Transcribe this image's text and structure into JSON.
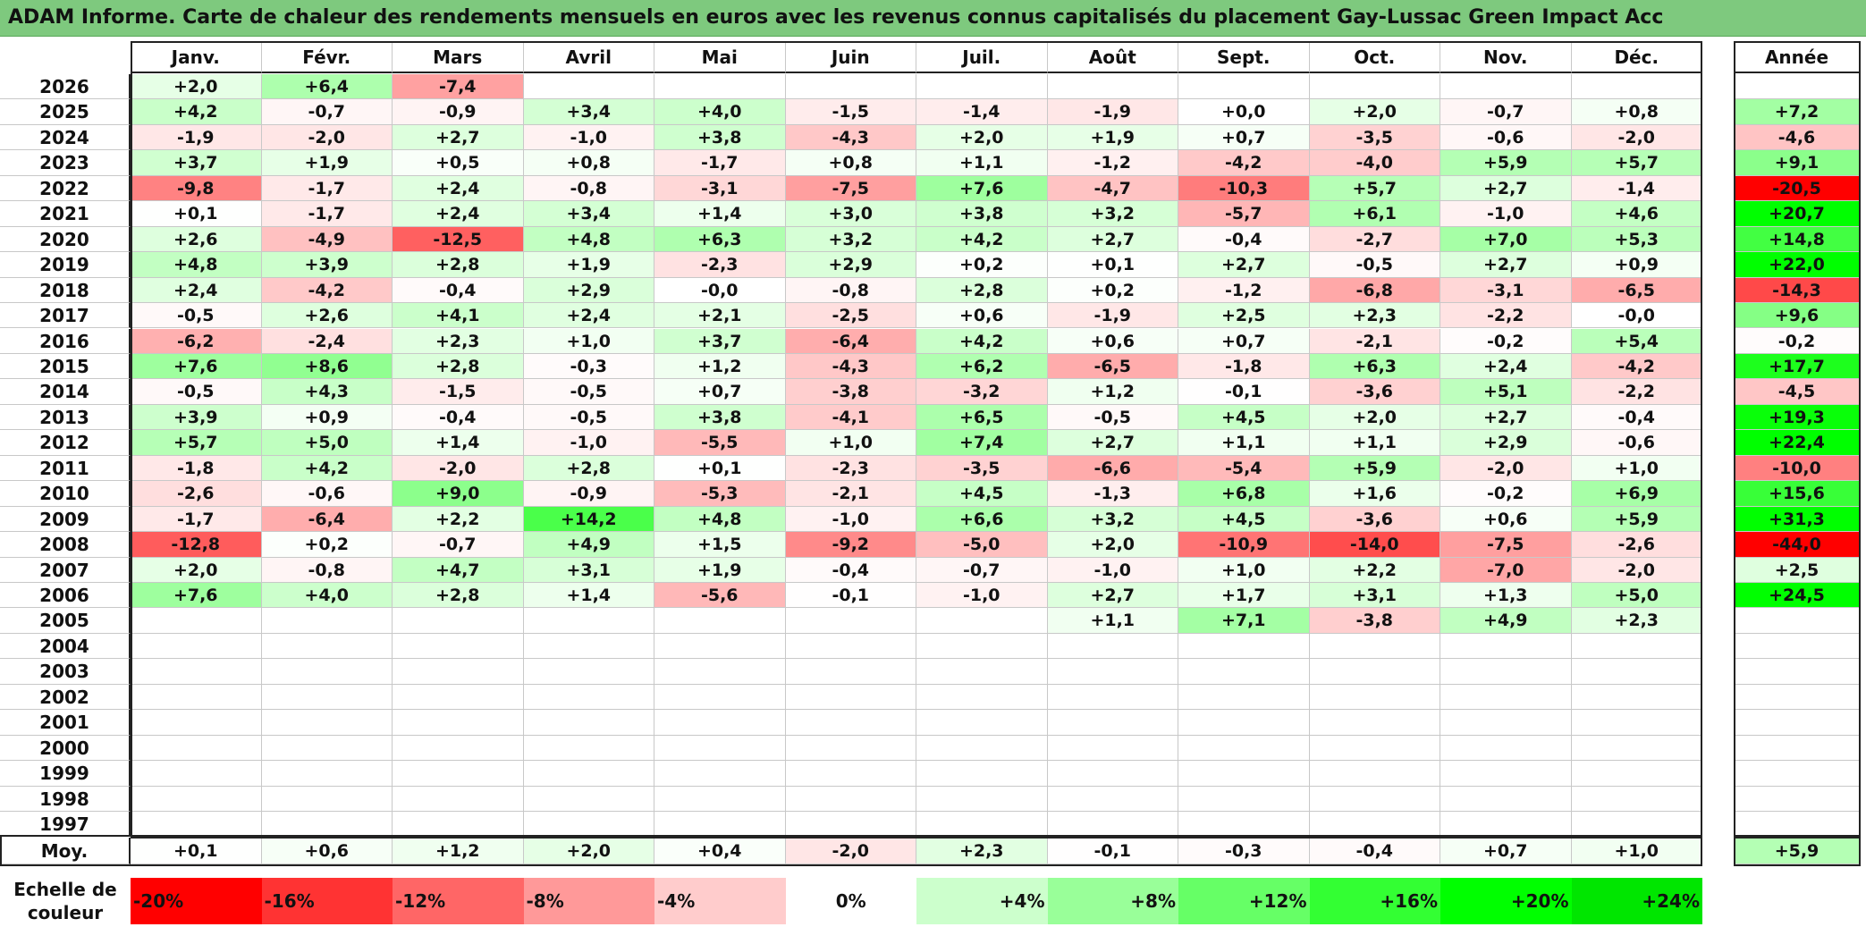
{
  "title": "ADAM Informe. Carte de chaleur des rendements mensuels en euros avec les revenus connus capitalisés du placement Gay-Lussac Green Impact Acc",
  "chart_data": {
    "type": "heatmap",
    "title": "ADAM Informe. Carte de chaleur des rendements mensuels en euros avec les revenus connus capitalisés du placement Gay-Lussac Green Impact Acc",
    "columns": [
      "Janv.",
      "Févr.",
      "Mars",
      "Avril",
      "Mai",
      "Juin",
      "Juil.",
      "Août",
      "Sept.",
      "Oct.",
      "Nov.",
      "Déc."
    ],
    "annual_header": "Année",
    "rows": [
      {
        "year": "2026",
        "values": [
          "+2,0",
          "+6,4",
          "-7,4",
          "",
          "",
          "",
          "",
          "",
          "",
          "",
          "",
          ""
        ],
        "annual": ""
      },
      {
        "year": "2025",
        "values": [
          "+4,2",
          "-0,7",
          "-0,9",
          "+3,4",
          "+4,0",
          "-1,5",
          "-1,4",
          "-1,9",
          "+0,0",
          "+2,0",
          "-0,7",
          "+0,8"
        ],
        "annual": "+7,2"
      },
      {
        "year": "2024",
        "values": [
          "-1,9",
          "-2,0",
          "+2,7",
          "-1,0",
          "+3,8",
          "-4,3",
          "+2,0",
          "+1,9",
          "+0,7",
          "-3,5",
          "-0,6",
          "-2,0"
        ],
        "annual": "-4,6"
      },
      {
        "year": "2023",
        "values": [
          "+3,7",
          "+1,9",
          "+0,5",
          "+0,8",
          "-1,7",
          "+0,8",
          "+1,1",
          "-1,2",
          "-4,2",
          "-4,0",
          "+5,9",
          "+5,7"
        ],
        "annual": "+9,1"
      },
      {
        "year": "2022",
        "values": [
          "-9,8",
          "-1,7",
          "+2,4",
          "-0,8",
          "-3,1",
          "-7,5",
          "+7,6",
          "-4,7",
          "-10,3",
          "+5,7",
          "+2,7",
          "-1,4"
        ],
        "annual": "-20,5"
      },
      {
        "year": "2021",
        "values": [
          "+0,1",
          "-1,7",
          "+2,4",
          "+3,4",
          "+1,4",
          "+3,0",
          "+3,8",
          "+3,2",
          "-5,7",
          "+6,1",
          "-1,0",
          "+4,6"
        ],
        "annual": "+20,7"
      },
      {
        "year": "2020",
        "values": [
          "+2,6",
          "-4,9",
          "-12,5",
          "+4,8",
          "+6,3",
          "+3,2",
          "+4,2",
          "+2,7",
          "-0,4",
          "-2,7",
          "+7,0",
          "+5,3"
        ],
        "annual": "+14,8"
      },
      {
        "year": "2019",
        "values": [
          "+4,8",
          "+3,9",
          "+2,8",
          "+1,9",
          "-2,3",
          "+2,9",
          "+0,2",
          "+0,1",
          "+2,7",
          "-0,5",
          "+2,7",
          "+0,9"
        ],
        "annual": "+22,0"
      },
      {
        "year": "2018",
        "values": [
          "+2,4",
          "-4,2",
          "-0,4",
          "+2,9",
          "-0,0",
          "-0,8",
          "+2,8",
          "+0,2",
          "-1,2",
          "-6,8",
          "-3,1",
          "-6,5"
        ],
        "annual": "-14,3"
      },
      {
        "year": "2017",
        "values": [
          "-0,5",
          "+2,6",
          "+4,1",
          "+2,4",
          "+2,1",
          "-2,5",
          "+0,6",
          "-1,9",
          "+2,5",
          "+2,3",
          "-2,2",
          "-0,0"
        ],
        "annual": "+9,6"
      },
      {
        "year": "2016",
        "values": [
          "-6,2",
          "-2,4",
          "+2,3",
          "+1,0",
          "+3,7",
          "-6,4",
          "+4,2",
          "+0,6",
          "+0,7",
          "-2,1",
          "-0,2",
          "+5,4"
        ],
        "annual": "-0,2"
      },
      {
        "year": "2015",
        "values": [
          "+7,6",
          "+8,6",
          "+2,8",
          "-0,3",
          "+1,2",
          "-4,3",
          "+6,2",
          "-6,5",
          "-1,8",
          "+6,3",
          "+2,4",
          "-4,2"
        ],
        "annual": "+17,7"
      },
      {
        "year": "2014",
        "values": [
          "-0,5",
          "+4,3",
          "-1,5",
          "-0,5",
          "+0,7",
          "-3,8",
          "-3,2",
          "+1,2",
          "-0,1",
          "-3,6",
          "+5,1",
          "-2,2"
        ],
        "annual": "-4,5"
      },
      {
        "year": "2013",
        "values": [
          "+3,9",
          "+0,9",
          "-0,4",
          "-0,5",
          "+3,8",
          "-4,1",
          "+6,5",
          "-0,5",
          "+4,5",
          "+2,0",
          "+2,7",
          "-0,4"
        ],
        "annual": "+19,3"
      },
      {
        "year": "2012",
        "values": [
          "+5,7",
          "+5,0",
          "+1,4",
          "-1,0",
          "-5,5",
          "+1,0",
          "+7,4",
          "+2,7",
          "+1,1",
          "+1,1",
          "+2,9",
          "-0,6"
        ],
        "annual": "+22,4"
      },
      {
        "year": "2011",
        "values": [
          "-1,8",
          "+4,2",
          "-2,0",
          "+2,8",
          "+0,1",
          "-2,3",
          "-3,5",
          "-6,6",
          "-5,4",
          "+5,9",
          "-2,0",
          "+1,0"
        ],
        "annual": "-10,0"
      },
      {
        "year": "2010",
        "values": [
          "-2,6",
          "-0,6",
          "+9,0",
          "-0,9",
          "-5,3",
          "-2,1",
          "+4,5",
          "-1,3",
          "+6,8",
          "+1,6",
          "-0,2",
          "+6,9"
        ],
        "annual": "+15,6"
      },
      {
        "year": "2009",
        "values": [
          "-1,7",
          "-6,4",
          "+2,2",
          "+14,2",
          "+4,8",
          "-1,0",
          "+6,6",
          "+3,2",
          "+4,5",
          "-3,6",
          "+0,6",
          "+5,9"
        ],
        "annual": "+31,3"
      },
      {
        "year": "2008",
        "values": [
          "-12,8",
          "+0,2",
          "-0,7",
          "+4,9",
          "+1,5",
          "-9,2",
          "-5,0",
          "+2,0",
          "-10,9",
          "-14,0",
          "-7,5",
          "-2,6"
        ],
        "annual": "-44,0"
      },
      {
        "year": "2007",
        "values": [
          "+2,0",
          "-0,8",
          "+4,7",
          "+3,1",
          "+1,9",
          "-0,4",
          "-0,7",
          "-1,0",
          "+1,0",
          "+2,2",
          "-7,0",
          "-2,0"
        ],
        "annual": "+2,5"
      },
      {
        "year": "2006",
        "values": [
          "+7,6",
          "+4,0",
          "+2,8",
          "+1,4",
          "-5,6",
          "-0,1",
          "-1,0",
          "+2,7",
          "+1,7",
          "+3,1",
          "+1,3",
          "+5,0"
        ],
        "annual": "+24,5"
      },
      {
        "year": "2005",
        "values": [
          "",
          "",
          "",
          "",
          "",
          "",
          "",
          "+1,1",
          "+7,1",
          "-3,8",
          "+4,9",
          "+2,3"
        ],
        "annual": ""
      },
      {
        "year": "2004",
        "values": [
          "",
          "",
          "",
          "",
          "",
          "",
          "",
          "",
          "",
          "",
          "",
          ""
        ],
        "annual": ""
      },
      {
        "year": "2003",
        "values": [
          "",
          "",
          "",
          "",
          "",
          "",
          "",
          "",
          "",
          "",
          "",
          ""
        ],
        "annual": ""
      },
      {
        "year": "2002",
        "values": [
          "",
          "",
          "",
          "",
          "",
          "",
          "",
          "",
          "",
          "",
          "",
          ""
        ],
        "annual": ""
      },
      {
        "year": "2001",
        "values": [
          "",
          "",
          "",
          "",
          "",
          "",
          "",
          "",
          "",
          "",
          "",
          ""
        ],
        "annual": ""
      },
      {
        "year": "2000",
        "values": [
          "",
          "",
          "",
          "",
          "",
          "",
          "",
          "",
          "",
          "",
          "",
          ""
        ],
        "annual": ""
      },
      {
        "year": "1999",
        "values": [
          "",
          "",
          "",
          "",
          "",
          "",
          "",
          "",
          "",
          "",
          "",
          ""
        ],
        "annual": ""
      },
      {
        "year": "1998",
        "values": [
          "",
          "",
          "",
          "",
          "",
          "",
          "",
          "",
          "",
          "",
          "",
          ""
        ],
        "annual": ""
      },
      {
        "year": "1997",
        "values": [
          "",
          "",
          "",
          "",
          "",
          "",
          "",
          "",
          "",
          "",
          "",
          ""
        ],
        "annual": ""
      }
    ],
    "average": {
      "label": "Moy.",
      "values": [
        "+0,1",
        "+0,6",
        "+1,2",
        "+2,0",
        "+0,4",
        "-2,0",
        "+2,3",
        "-0,1",
        "-0,3",
        "-0,4",
        "+0,7",
        "+1,0"
      ],
      "annual": "+5,9"
    },
    "color_scale": {
      "label_line1": "Echelle de",
      "label_line2": "couleur",
      "stops": [
        {
          "label": "-20%",
          "value": -20,
          "color": "#ff0000"
        },
        {
          "label": "-16%",
          "value": -16,
          "color": "#ff3333"
        },
        {
          "label": "-12%",
          "value": -12,
          "color": "#ff6666"
        },
        {
          "label": "-8%",
          "value": -8,
          "color": "#ff9999"
        },
        {
          "label": "-4%",
          "value": -4,
          "color": "#ffcccc"
        },
        {
          "label": "0%",
          "value": 0,
          "color": "#ffffff"
        },
        {
          "label": "+4%",
          "value": 4,
          "color": "#ccffcc"
        },
        {
          "label": "+8%",
          "value": 8,
          "color": "#99ff99"
        },
        {
          "label": "+12%",
          "value": 12,
          "color": "#66ff66"
        },
        {
          "label": "+16%",
          "value": 16,
          "color": "#33ff33"
        },
        {
          "label": "+20%",
          "value": 20,
          "color": "#00ff00"
        },
        {
          "label": "+24%",
          "value": 24,
          "color": "#00e600"
        }
      ]
    }
  }
}
